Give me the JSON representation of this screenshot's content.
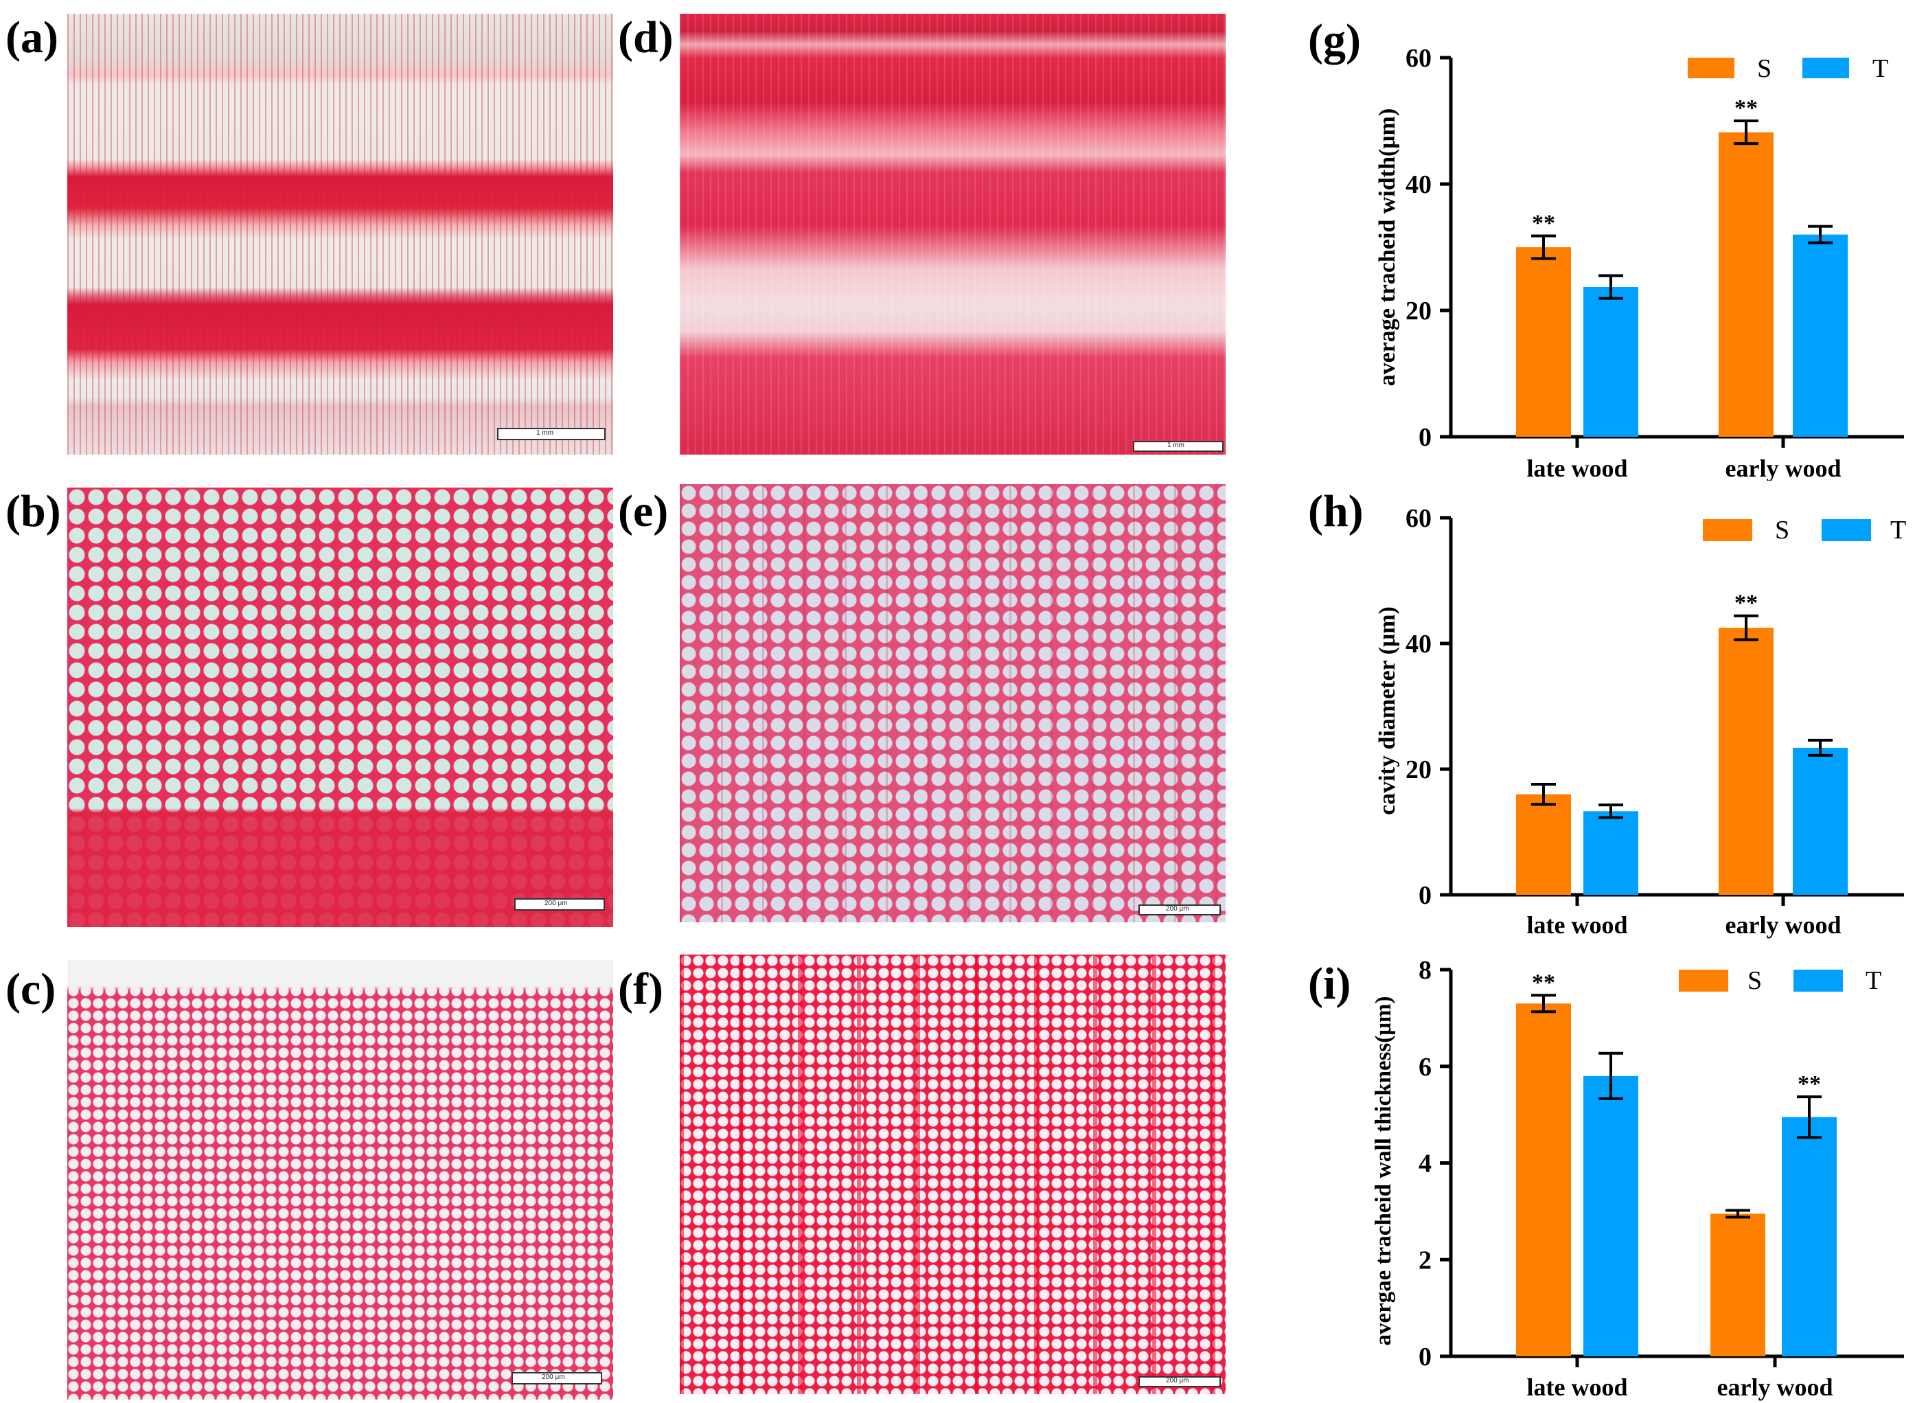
{
  "panel_labels": [
    "(a)",
    "(b)",
    "(c)",
    "(d)",
    "(e)",
    "(f)",
    "(g)",
    "(h)",
    "(i)"
  ],
  "micrographs": {
    "a": {
      "scale_bar": "1 mm"
    },
    "b": {
      "scale_bar": "200 μm"
    },
    "c": {
      "scale_bar": "200 μm"
    },
    "d": {
      "scale_bar": "1 mm"
    },
    "e": {
      "scale_bar": "200 μm"
    },
    "f": {
      "scale_bar": "200 μm"
    }
  },
  "colors": {
    "S": "#ff8000",
    "T": "#00a0ff",
    "stain": "#e4224a",
    "light": "#dcdce4"
  },
  "chart_data": [
    {
      "panel": "(g)",
      "type": "bar",
      "categories": [
        "late wood",
        "early wood"
      ],
      "series": [
        {
          "name": "S",
          "values": [
            30,
            48.2
          ],
          "errors": [
            1.8,
            1.8
          ],
          "significance": [
            "**",
            "**"
          ]
        },
        {
          "name": "T",
          "values": [
            23.7,
            32
          ],
          "errors": [
            1.8,
            1.3
          ],
          "significance": [
            "",
            ""
          ]
        }
      ],
      "ylabel": "average tracheid width(μm)",
      "yticks": [
        0,
        20,
        40,
        60
      ],
      "ylim": [
        0,
        60
      ],
      "legend": "top-right"
    },
    {
      "panel": "(h)",
      "type": "bar",
      "categories": [
        "late wood",
        "early wood"
      ],
      "series": [
        {
          "name": "S",
          "values": [
            16,
            42.5
          ],
          "errors": [
            1.6,
            1.9
          ],
          "significance": [
            "",
            "**"
          ]
        },
        {
          "name": "T",
          "values": [
            13.3,
            23.4
          ],
          "errors": [
            1,
            1.2
          ],
          "significance": [
            "",
            ""
          ]
        }
      ],
      "ylabel": "cavity diameter (μm)",
      "yticks": [
        0,
        20,
        40,
        60
      ],
      "ylim": [
        0,
        60
      ],
      "legend": "top-right"
    },
    {
      "panel": "(i)",
      "type": "bar",
      "categories": [
        "late wood",
        "early wood"
      ],
      "series": [
        {
          "name": "S",
          "values": [
            7.3,
            2.95
          ],
          "errors": [
            0.17,
            0.07
          ],
          "significance": [
            "**",
            ""
          ]
        },
        {
          "name": "T",
          "values": [
            5.8,
            4.95
          ],
          "errors": [
            0.47,
            0.42
          ],
          "significance": [
            "",
            "**"
          ]
        }
      ],
      "ylabel": "avergae tracheid wall thickness(μm)",
      "yticks": [
        0,
        2,
        4,
        6,
        8
      ],
      "ylim": [
        0,
        8
      ],
      "legend": "top-right"
    }
  ]
}
